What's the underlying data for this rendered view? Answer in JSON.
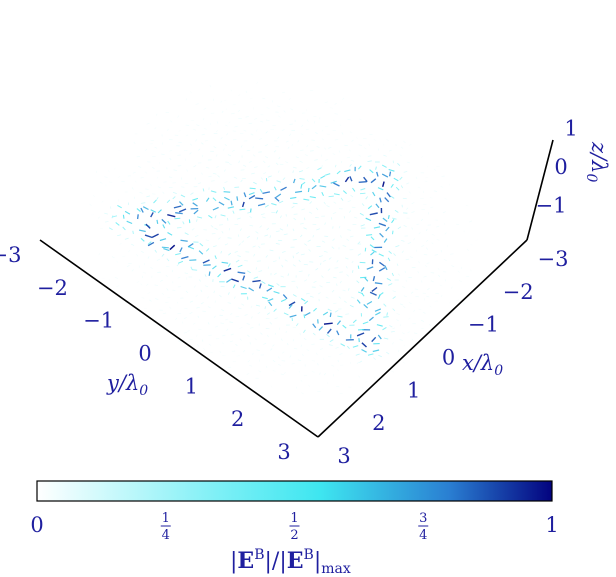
{
  "chart_data": {
    "type": "quiver3d",
    "title": "",
    "axes": {
      "x": {
        "label": "x/λ0",
        "range": [
          -3,
          3
        ],
        "ticks": [
          -3,
          -2,
          -1,
          0,
          1,
          2,
          3
        ]
      },
      "y": {
        "label": "y/λ0",
        "range": [
          -3,
          3
        ],
        "ticks": [
          -3,
          -2,
          -1,
          0,
          1,
          2,
          3
        ]
      },
      "z": {
        "label": "z/λ0",
        "range": [
          -1,
          1
        ],
        "ticks": [
          -1,
          0,
          1
        ]
      }
    },
    "field": {
      "description_points": "triangular ring of high-magnitude field vectors",
      "ring_vertices_xy": [
        [
          -2.4,
          0.4
        ],
        [
          1.6,
          -2.2
        ],
        [
          0.8,
          2.4
        ]
      ],
      "ring_peak": 1.0,
      "background": 0.15
    },
    "colorbar": {
      "label": "|E^B|/|E^B|max",
      "min": 0,
      "max": 1,
      "tick_labels": [
        "0",
        "1/4",
        "1/2",
        "3/4",
        "1"
      ],
      "tick_values": [
        0,
        0.25,
        0.5,
        0.75,
        1
      ],
      "colors": [
        "#ffffff",
        "#40e8f0",
        "#2f8fd8",
        "#05058a"
      ]
    }
  }
}
